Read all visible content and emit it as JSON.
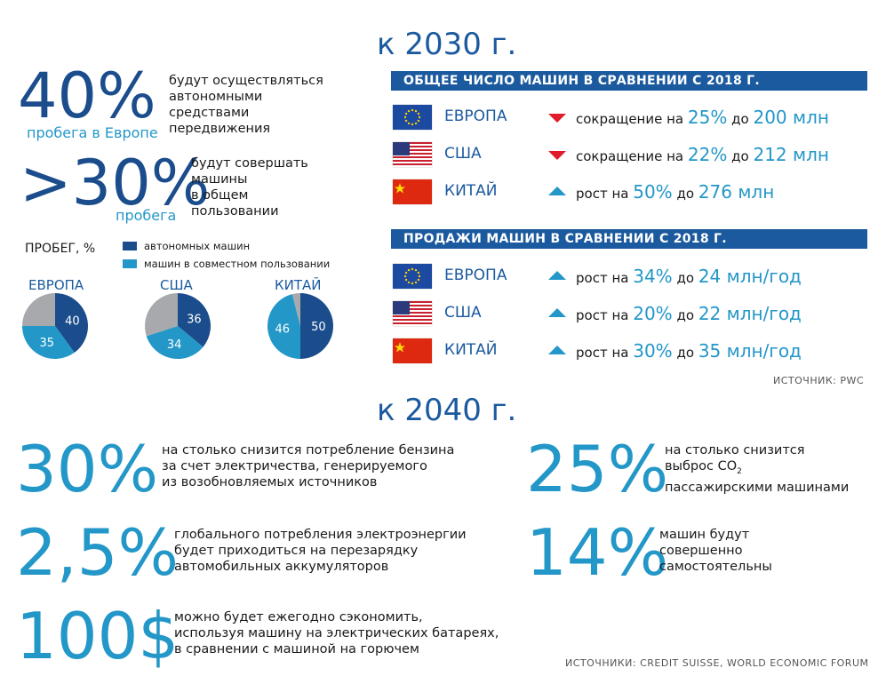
{
  "colors": {
    "dark_blue": "#1b4d8c",
    "light_blue": "#2397c8",
    "gray": "#a7a9ac",
    "red": "#e21b2a",
    "bar": "#1b5a9e"
  },
  "header_2030": "к 2030 г.",
  "header_2040": "к 2040 г.",
  "stat_40": {
    "value": "40%",
    "sub": "пробега в Европе",
    "lines": [
      "будут осуществляться",
      "автономными",
      "средствами",
      "передвижения"
    ]
  },
  "stat_30": {
    "value": ">30%",
    "sub": "пробега",
    "lines": [
      "будут совершать",
      "машины",
      "в общем",
      "пользовании"
    ]
  },
  "chart_data": {
    "type": "pie",
    "title": "ПРОБЕГ, %",
    "legend": [
      {
        "name": "автономных машин",
        "color": "#1b4d8c"
      },
      {
        "name": "машин в совместном пользовании",
        "color": "#2397c8"
      }
    ],
    "charts": [
      {
        "name": "ЕВРОПА",
        "autonomous": 40,
        "shared": 35,
        "other": 25
      },
      {
        "name": "США",
        "autonomous": 36,
        "shared": 34,
        "other": 30
      },
      {
        "name": "КИТАЙ",
        "autonomous": 50,
        "shared": 46,
        "other": 4
      }
    ]
  },
  "cars_total": {
    "title": "ОБЩЕЕ ЧИСЛО МАШИН В СРАВНЕНИИ С 2018 Г.",
    "rows": [
      {
        "country": "ЕВРОПА",
        "flag": "eu-flag",
        "dir": "down",
        "prefix": "сокращение на",
        "pct": "25%",
        "mid": "до",
        "amount": "200 млн"
      },
      {
        "country": "США",
        "flag": "us-flag",
        "dir": "down",
        "prefix": "сокращение на",
        "pct": "22%",
        "mid": "до",
        "amount": "212 млн"
      },
      {
        "country": "КИТАЙ",
        "flag": "cn-flag",
        "dir": "up",
        "prefix": "рост на",
        "pct": "50%",
        "mid": "до",
        "amount": "276 млн"
      }
    ]
  },
  "cars_sales": {
    "title": "ПРОДАЖИ МАШИН В СРАВНЕНИИ С 2018 Г.",
    "rows": [
      {
        "country": "ЕВРОПА",
        "flag": "eu-flag",
        "dir": "up",
        "prefix": "рост на",
        "pct": "34%",
        "mid": "до",
        "amount": "24 млн/год"
      },
      {
        "country": "США",
        "flag": "us-flag",
        "dir": "up",
        "prefix": "рост на",
        "pct": "20%",
        "mid": "до",
        "amount": "22 млн/год"
      },
      {
        "country": "КИТАЙ",
        "flag": "cn-flag",
        "dir": "up",
        "prefix": "рост на",
        "pct": "30%",
        "mid": "до",
        "amount": "35 млн/год"
      }
    ]
  },
  "source_pwc": "ИСТОЧНИК: PWC",
  "f2040": {
    "s1": {
      "value": "30%",
      "lines": [
        "на столько снизится потребление бензина",
        "за счет электричества, генерируемого",
        "из возобновляемых источников"
      ]
    },
    "s2": {
      "value": "2,5%",
      "lines": [
        "глобального потребления электроэнергии",
        "будет приходиться на перезарядку",
        "автомобильных аккумуляторов"
      ]
    },
    "s3": {
      "value": "100$",
      "lines": [
        "можно будет ежегодно сэкономить,",
        "используя машину на электрических батареях,",
        "в сравнении с машиной на горючем"
      ]
    },
    "s4": {
      "value": "25%",
      "line1": "на столько снизится",
      "line2a": "выброс CO",
      "line2sub": "2",
      "line3": "пассажирскими машинами"
    },
    "s5": {
      "value": "14%",
      "lines": [
        "машин будут",
        "совершенно",
        "самостоятельны"
      ]
    }
  },
  "source_bottom": "ИСТОЧНИКИ: CREDIT SUISSE, WORLD ECONOMIC FORUM"
}
